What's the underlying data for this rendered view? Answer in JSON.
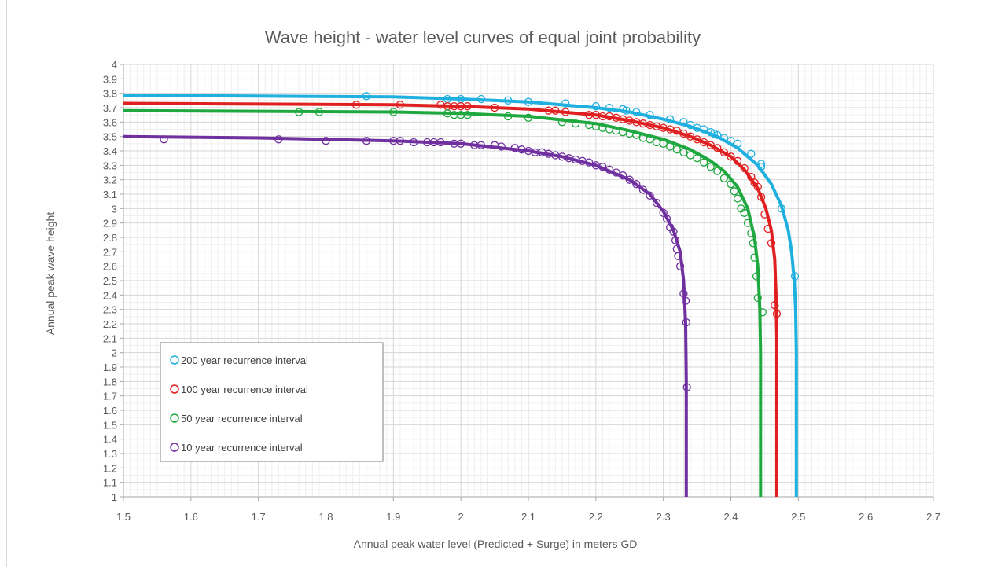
{
  "chart_data": {
    "type": "scatter",
    "title": "Wave height - water level curves of equal joint probability",
    "xlabel": "Annual peak water level (Predicted + Surge) in meters GD",
    "ylabel": "Annual peak wave height",
    "xlim": [
      1.5,
      2.7
    ],
    "ylim": [
      1,
      4
    ],
    "x_ticks": [
      "1.5",
      "1.6",
      "1.7",
      "1.8",
      "1.9",
      "2",
      "2.1",
      "2.2",
      "2.3",
      "2.4",
      "2.5",
      "2.6",
      "2.7"
    ],
    "y_ticks": [
      "1",
      "1.1",
      "1.2",
      "1.3",
      "1.4",
      "1.5",
      "1.6",
      "1.7",
      "1.8",
      "1.9",
      "2",
      "2.1",
      "2.2",
      "2.3",
      "2.4",
      "2.5",
      "2.6",
      "2.7",
      "2.8",
      "2.9",
      "3",
      "3.1",
      "3.2",
      "3.3",
      "3.4",
      "3.5",
      "3.6",
      "3.7",
      "3.8",
      "3.9",
      "4"
    ],
    "grid": true,
    "minor_grid": true,
    "legend_position": "bottom-left",
    "series": [
      {
        "name": "200 year recurrence interval",
        "color": "#1fb0e0",
        "curve": [
          [
            1.5,
            3.785
          ],
          [
            1.7,
            3.78
          ],
          [
            1.9,
            3.775
          ],
          [
            2.0,
            3.76
          ],
          [
            2.1,
            3.74
          ],
          [
            2.2,
            3.7
          ],
          [
            2.25,
            3.67
          ],
          [
            2.3,
            3.62
          ],
          [
            2.34,
            3.57
          ],
          [
            2.38,
            3.5
          ],
          [
            2.41,
            3.42
          ],
          [
            2.44,
            3.3
          ],
          [
            2.46,
            3.17
          ],
          [
            2.475,
            3.02
          ],
          [
            2.485,
            2.85
          ],
          [
            2.49,
            2.7
          ],
          [
            2.494,
            2.5
          ],
          [
            2.496,
            2.3
          ],
          [
            2.497,
            2.0
          ],
          [
            2.497,
            1.0
          ]
        ],
        "points": [
          [
            1.86,
            3.78
          ],
          [
            1.98,
            3.76
          ],
          [
            2.0,
            3.76
          ],
          [
            2.03,
            3.76
          ],
          [
            2.07,
            3.75
          ],
          [
            2.1,
            3.74
          ],
          [
            2.155,
            3.73
          ],
          [
            2.2,
            3.71
          ],
          [
            2.22,
            3.7
          ],
          [
            2.24,
            3.69
          ],
          [
            2.245,
            3.68
          ],
          [
            2.26,
            3.67
          ],
          [
            2.28,
            3.65
          ],
          [
            2.31,
            3.62
          ],
          [
            2.33,
            3.6
          ],
          [
            2.34,
            3.58
          ],
          [
            2.35,
            3.56
          ],
          [
            2.36,
            3.55
          ],
          [
            2.37,
            3.53
          ],
          [
            2.375,
            3.52
          ],
          [
            2.38,
            3.51
          ],
          [
            2.39,
            3.49
          ],
          [
            2.4,
            3.47
          ],
          [
            2.41,
            3.45
          ],
          [
            2.43,
            3.38
          ],
          [
            2.445,
            3.31
          ],
          [
            2.445,
            3.29
          ],
          [
            2.475,
            3.0
          ],
          [
            2.495,
            2.53
          ]
        ]
      },
      {
        "name": "100 year recurrence interval",
        "color": "#e02020",
        "curve": [
          [
            1.5,
            3.73
          ],
          [
            1.7,
            3.725
          ],
          [
            1.9,
            3.72
          ],
          [
            2.0,
            3.71
          ],
          [
            2.1,
            3.69
          ],
          [
            2.2,
            3.65
          ],
          [
            2.25,
            3.61
          ],
          [
            2.3,
            3.56
          ],
          [
            2.34,
            3.5
          ],
          [
            2.37,
            3.44
          ],
          [
            2.4,
            3.36
          ],
          [
            2.42,
            3.27
          ],
          [
            2.44,
            3.14
          ],
          [
            2.452,
            3.0
          ],
          [
            2.46,
            2.85
          ],
          [
            2.465,
            2.65
          ],
          [
            2.467,
            2.4
          ],
          [
            2.468,
            2.1
          ],
          [
            2.468,
            1.0
          ]
        ],
        "points": [
          [
            1.845,
            3.72
          ],
          [
            1.91,
            3.72
          ],
          [
            1.97,
            3.72
          ],
          [
            1.98,
            3.71
          ],
          [
            1.99,
            3.71
          ],
          [
            2.0,
            3.71
          ],
          [
            2.01,
            3.71
          ],
          [
            2.05,
            3.7
          ],
          [
            2.13,
            3.68
          ],
          [
            2.14,
            3.68
          ],
          [
            2.155,
            3.67
          ],
          [
            2.19,
            3.65
          ],
          [
            2.2,
            3.65
          ],
          [
            2.21,
            3.64
          ],
          [
            2.22,
            3.64
          ],
          [
            2.23,
            3.63
          ],
          [
            2.24,
            3.62
          ],
          [
            2.25,
            3.61
          ],
          [
            2.26,
            3.6
          ],
          [
            2.27,
            3.59
          ],
          [
            2.28,
            3.58
          ],
          [
            2.29,
            3.57
          ],
          [
            2.3,
            3.56
          ],
          [
            2.31,
            3.55
          ],
          [
            2.32,
            3.54
          ],
          [
            2.33,
            3.52
          ],
          [
            2.34,
            3.5
          ],
          [
            2.35,
            3.48
          ],
          [
            2.36,
            3.46
          ],
          [
            2.37,
            3.44
          ],
          [
            2.38,
            3.42
          ],
          [
            2.39,
            3.39
          ],
          [
            2.4,
            3.36
          ],
          [
            2.41,
            3.33
          ],
          [
            2.42,
            3.28
          ],
          [
            2.43,
            3.22
          ],
          [
            2.435,
            3.18
          ],
          [
            2.44,
            3.15
          ],
          [
            2.445,
            3.08
          ],
          [
            2.45,
            2.96
          ],
          [
            2.455,
            2.86
          ],
          [
            2.46,
            2.76
          ],
          [
            2.465,
            2.33
          ],
          [
            2.468,
            2.27
          ]
        ]
      },
      {
        "name": "50 year recurrence interval",
        "color": "#20a840",
        "curve": [
          [
            1.5,
            3.68
          ],
          [
            1.7,
            3.675
          ],
          [
            1.9,
            3.67
          ],
          [
            2.0,
            3.66
          ],
          [
            2.1,
            3.64
          ],
          [
            2.2,
            3.59
          ],
          [
            2.25,
            3.54
          ],
          [
            2.3,
            3.48
          ],
          [
            2.34,
            3.41
          ],
          [
            2.37,
            3.33
          ],
          [
            2.39,
            3.26
          ],
          [
            2.41,
            3.15
          ],
          [
            2.425,
            3.0
          ],
          [
            2.435,
            2.8
          ],
          [
            2.44,
            2.6
          ],
          [
            2.443,
            2.3
          ],
          [
            2.444,
            2.0
          ],
          [
            2.444,
            1.0
          ]
        ],
        "points": [
          [
            1.76,
            3.67
          ],
          [
            1.79,
            3.67
          ],
          [
            1.9,
            3.67
          ],
          [
            1.98,
            3.66
          ],
          [
            1.99,
            3.65
          ],
          [
            2.0,
            3.65
          ],
          [
            2.01,
            3.65
          ],
          [
            2.07,
            3.64
          ],
          [
            2.1,
            3.63
          ],
          [
            2.15,
            3.6
          ],
          [
            2.17,
            3.59
          ],
          [
            2.19,
            3.58
          ],
          [
            2.2,
            3.57
          ],
          [
            2.21,
            3.56
          ],
          [
            2.22,
            3.55
          ],
          [
            2.23,
            3.54
          ],
          [
            2.24,
            3.53
          ],
          [
            2.25,
            3.52
          ],
          [
            2.26,
            3.51
          ],
          [
            2.27,
            3.49
          ],
          [
            2.28,
            3.48
          ],
          [
            2.29,
            3.46
          ],
          [
            2.3,
            3.45
          ],
          [
            2.31,
            3.43
          ],
          [
            2.32,
            3.41
          ],
          [
            2.33,
            3.39
          ],
          [
            2.34,
            3.37
          ],
          [
            2.35,
            3.35
          ],
          [
            2.36,
            3.32
          ],
          [
            2.37,
            3.29
          ],
          [
            2.38,
            3.26
          ],
          [
            2.39,
            3.21
          ],
          [
            2.4,
            3.17
          ],
          [
            2.405,
            3.12
          ],
          [
            2.41,
            3.07
          ],
          [
            2.415,
            3.0
          ],
          [
            2.42,
            2.97
          ],
          [
            2.425,
            2.9
          ],
          [
            2.43,
            2.83
          ],
          [
            2.433,
            2.76
          ],
          [
            2.435,
            2.66
          ],
          [
            2.438,
            2.53
          ],
          [
            2.44,
            2.38
          ],
          [
            2.447,
            2.28
          ]
        ]
      },
      {
        "name": "10 year recurrence interval",
        "color": "#7030a0",
        "curve": [
          [
            1.5,
            3.5
          ],
          [
            1.7,
            3.49
          ],
          [
            1.9,
            3.47
          ],
          [
            2.0,
            3.45
          ],
          [
            2.1,
            3.4
          ],
          [
            2.15,
            3.36
          ],
          [
            2.2,
            3.3
          ],
          [
            2.25,
            3.2
          ],
          [
            2.28,
            3.1
          ],
          [
            2.3,
            2.98
          ],
          [
            2.315,
            2.85
          ],
          [
            2.325,
            2.7
          ],
          [
            2.33,
            2.5
          ],
          [
            2.333,
            2.2
          ],
          [
            2.334,
            1.8
          ],
          [
            2.334,
            1.0
          ]
        ],
        "points": [
          [
            1.56,
            3.48
          ],
          [
            1.73,
            3.48
          ],
          [
            1.8,
            3.47
          ],
          [
            1.86,
            3.47
          ],
          [
            1.9,
            3.47
          ],
          [
            1.91,
            3.47
          ],
          [
            1.93,
            3.46
          ],
          [
            1.95,
            3.46
          ],
          [
            1.96,
            3.46
          ],
          [
            1.97,
            3.46
          ],
          [
            1.99,
            3.45
          ],
          [
            2.0,
            3.45
          ],
          [
            2.02,
            3.44
          ],
          [
            2.03,
            3.44
          ],
          [
            2.05,
            3.44
          ],
          [
            2.06,
            3.43
          ],
          [
            2.08,
            3.42
          ],
          [
            2.09,
            3.41
          ],
          [
            2.1,
            3.4
          ],
          [
            2.11,
            3.39
          ],
          [
            2.12,
            3.39
          ],
          [
            2.13,
            3.38
          ],
          [
            2.14,
            3.37
          ],
          [
            2.15,
            3.36
          ],
          [
            2.16,
            3.35
          ],
          [
            2.17,
            3.34
          ],
          [
            2.18,
            3.33
          ],
          [
            2.19,
            3.32
          ],
          [
            2.2,
            3.3
          ],
          [
            2.21,
            3.29
          ],
          [
            2.22,
            3.27
          ],
          [
            2.23,
            3.25
          ],
          [
            2.24,
            3.23
          ],
          [
            2.25,
            3.2
          ],
          [
            2.26,
            3.17
          ],
          [
            2.27,
            3.13
          ],
          [
            2.28,
            3.09
          ],
          [
            2.29,
            3.04
          ],
          [
            2.3,
            2.97
          ],
          [
            2.305,
            2.93
          ],
          [
            2.31,
            2.87
          ],
          [
            2.315,
            2.84
          ],
          [
            2.318,
            2.78
          ],
          [
            2.32,
            2.72
          ],
          [
            2.322,
            2.67
          ],
          [
            2.325,
            2.6
          ],
          [
            2.33,
            2.41
          ],
          [
            2.333,
            2.36
          ],
          [
            2.334,
            2.21
          ],
          [
            2.335,
            1.76
          ]
        ]
      }
    ]
  }
}
